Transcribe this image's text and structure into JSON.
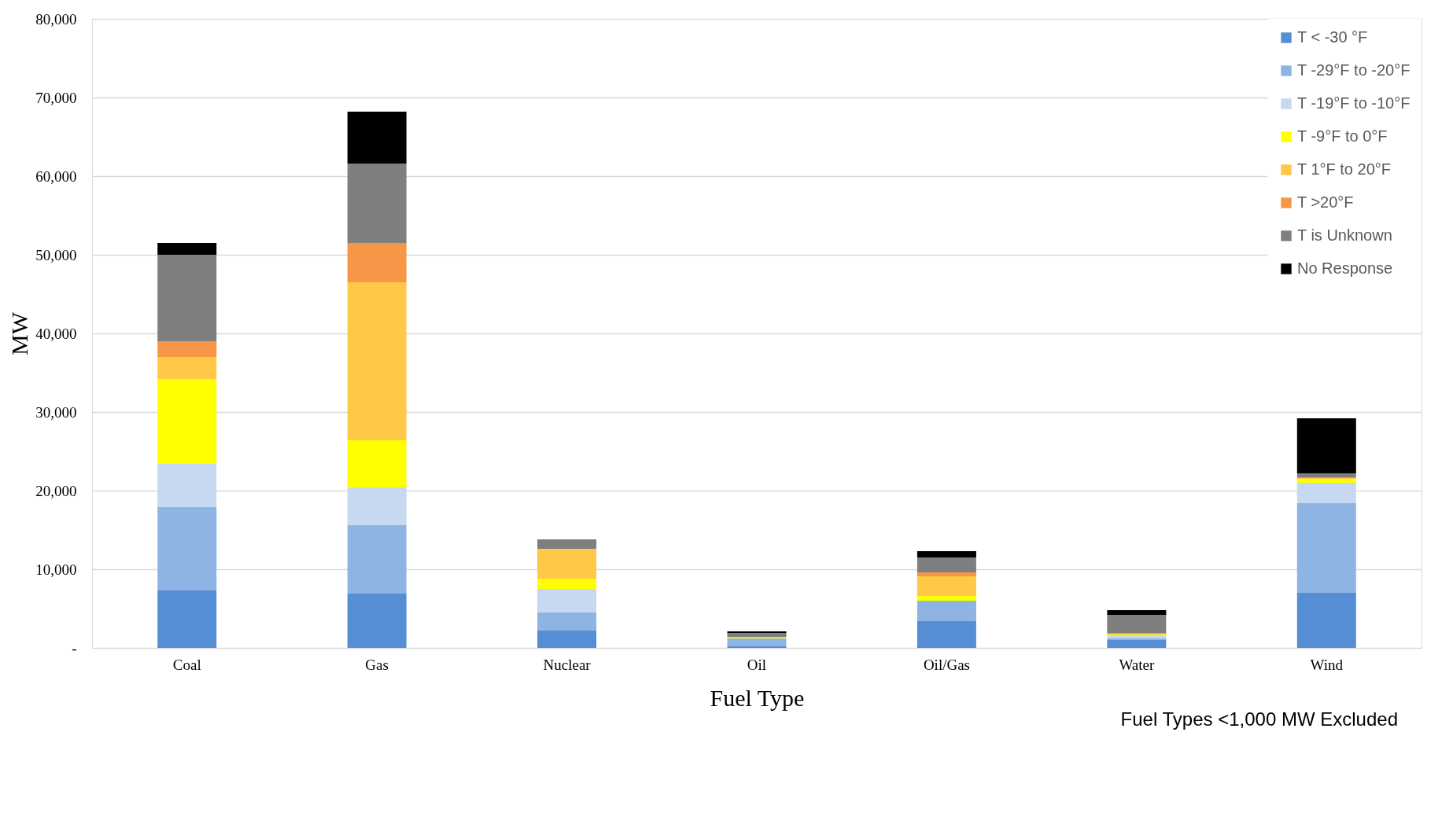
{
  "chart_data": {
    "type": "bar",
    "stacked": true,
    "xlabel": "Fuel Type",
    "ylabel": "MW",
    "categories": [
      "Coal",
      "Gas",
      "Nuclear",
      "Oil",
      "Oil/Gas",
      "Water",
      "Wind"
    ],
    "series": [
      {
        "name": "T < -30 °F",
        "color": "#558ed5",
        "values": [
          7300,
          6900,
          2200,
          200,
          3400,
          1000,
          7000
        ]
      },
      {
        "name": "T -29°F to -20°F",
        "color": "#8db4e2",
        "values": [
          10600,
          8700,
          2300,
          1000,
          2600,
          200,
          11400
        ]
      },
      {
        "name": "T -19°F to -10°F",
        "color": "#c6d9f0",
        "values": [
          5500,
          4800,
          3000,
          null,
          0,
          400,
          2600
        ]
      },
      {
        "name": "T -9°F to 0°F",
        "color": "#ffff00",
        "values": [
          10800,
          6000,
          1300,
          100,
          600,
          100,
          500
        ]
      },
      {
        "name": "T 1°F to 20°F",
        "color": "#ffc846",
        "values": [
          2800,
          20100,
          3800,
          100,
          2500,
          100,
          100
        ]
      },
      {
        "name": "T >20°F",
        "color": "#f79646",
        "values": [
          2000,
          5000,
          0,
          0,
          500,
          100,
          100
        ]
      },
      {
        "name": "T is Unknown",
        "color": "#7f7f7f",
        "values": [
          11000,
          10100,
          1200,
          500,
          1900,
          2300,
          500
        ]
      },
      {
        "name": "No Response",
        "color": "#000000",
        "values": [
          1500,
          6600,
          0,
          200,
          800,
          600,
          7000
        ]
      }
    ],
    "ylim": [
      0,
      80000
    ],
    "yticks": [
      {
        "value": 0,
        "label": "-"
      },
      {
        "value": 10000,
        "label": "10,000"
      },
      {
        "value": 20000,
        "label": "20,000"
      },
      {
        "value": 30000,
        "label": "30,000"
      },
      {
        "value": 40000,
        "label": "40,000"
      },
      {
        "value": 50000,
        "label": "50,000"
      },
      {
        "value": 60000,
        "label": "60,000"
      },
      {
        "value": 70000,
        "label": "70,000"
      },
      {
        "value": 80000,
        "label": "80,000"
      }
    ],
    "grid": "y",
    "legend": "top right",
    "annotations": [
      "Fuel Types <1,000 MW Excluded"
    ]
  }
}
